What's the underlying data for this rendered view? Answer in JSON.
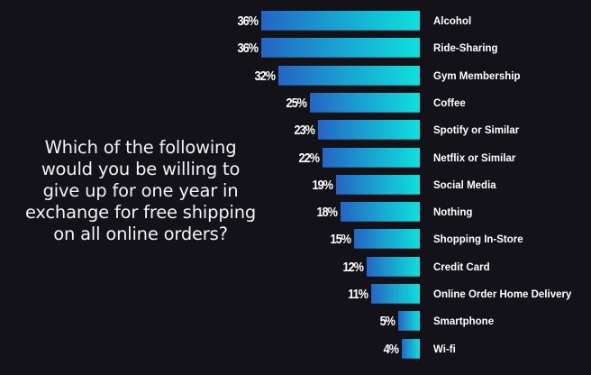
{
  "question": {
    "lines": [
      "Which of the following",
      "would you be willing to",
      "give up for one year in",
      "exchange for free shipping",
      "on all online orders?"
    ]
  },
  "colors": {
    "background": "#131219",
    "bar_gradient_start": "#2565c4",
    "bar_gradient_end": "#0ee0dc",
    "text": "#ffffff"
  },
  "chart_data": {
    "type": "bar",
    "orientation": "horizontal",
    "title": "Which of the following would you be willing to give up for one year in exchange for free shipping on all online orders?",
    "xlabel": "",
    "ylabel": "",
    "grid": false,
    "legend": null,
    "value_suffix": "%",
    "categories": [
      "Alcohol",
      "Ride-Sharing",
      "Gym Membership",
      "Coffee",
      "Spotify or Similar",
      "Netflix or Similar",
      "Social Media",
      "Nothing",
      "Shopping In-Store",
      "Credit Card",
      "Online Order Home Delivery",
      "Smartphone",
      "Wi-fi"
    ],
    "values": [
      36,
      36,
      32,
      25,
      23,
      22,
      19,
      18,
      15,
      12,
      11,
      5,
      4
    ],
    "value_labels": [
      "36%",
      "36%",
      "32%",
      "25%",
      "23%",
      "22%",
      "19%",
      "18%",
      "15%",
      "12%",
      "11%",
      "5%",
      "4%"
    ],
    "xlim": [
      0,
      36
    ]
  }
}
